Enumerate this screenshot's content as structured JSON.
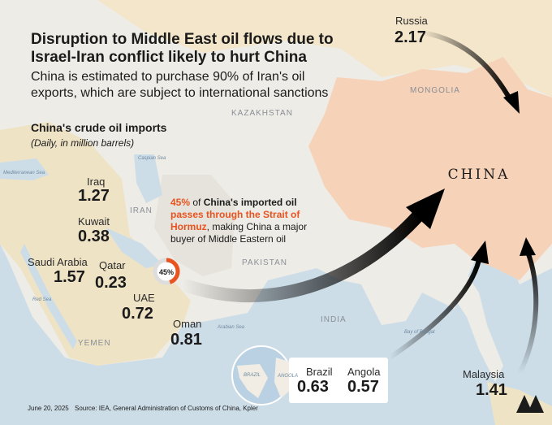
{
  "title": [
    "Disruption to Middle East oil flows due to",
    "Israel-Iran conflict likely to hurt China"
  ],
  "subtitle": [
    "China is estimated to purchase 90% of Iran's oil",
    "exports, which are subject to international sanctions"
  ],
  "section_title": "China's crude oil imports",
  "unit_note": "(Daily, in million barrels)",
  "china_label": "CHINA",
  "suppliers": [
    {
      "name": "Russia",
      "value": 2.17
    },
    {
      "name": "Iraq",
      "value": 1.27
    },
    {
      "name": "Kuwait",
      "value": 0.38
    },
    {
      "name": "Saudi Arabia",
      "value": 1.57
    },
    {
      "name": "Qatar",
      "value": 0.23
    },
    {
      "name": "UAE",
      "value": 0.72
    },
    {
      "name": "Oman",
      "value": 0.81
    },
    {
      "name": "Brazil",
      "value": 0.63
    },
    {
      "name": "Angola",
      "value": 0.57
    },
    {
      "name": "Malaysia",
      "value": 1.41
    }
  ],
  "hormuz_share": {
    "value": 45,
    "label": "45%"
  },
  "annotation": [
    "45%",
    " of ",
    "China's imported oil",
    "passes through the Strait of",
    "Hormuz",
    ", making China a major",
    "buyer of Middle Eastern oil"
  ],
  "map_labels": [
    "MONGOLIA",
    "KAZAKHSTAN",
    "IRAN",
    "PAKISTAN",
    "INDIA",
    "YEMEN",
    "Caspian Sea",
    "Mediterranean Sea",
    "Red Sea",
    "Arabian Sea",
    "Bay of Bengal",
    "BRAZIL",
    "ANGOLA"
  ],
  "footer": {
    "date": "June 20, 2025",
    "source": "Source: IEA, General Administration of Customs of China, Kpler"
  }
}
